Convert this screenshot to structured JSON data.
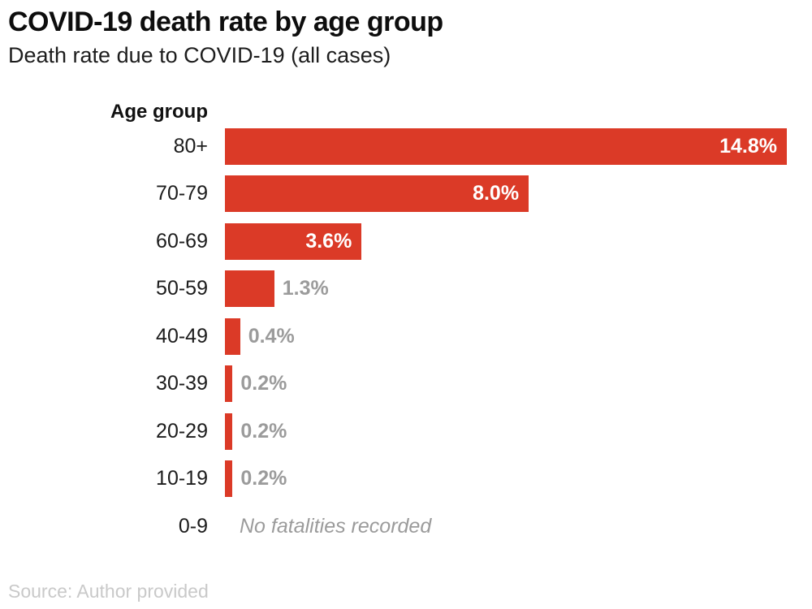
{
  "chart_data": {
    "type": "bar",
    "orientation": "horizontal",
    "title": "COVID-19 death rate by age group",
    "subtitle": "Death rate due to COVID-19 (all cases)",
    "axis_label": "Age group",
    "categories": [
      "80+",
      "70-79",
      "60-69",
      "50-59",
      "40-49",
      "30-39",
      "20-29",
      "10-19",
      "0-9"
    ],
    "values": [
      14.8,
      8.0,
      3.6,
      1.3,
      0.4,
      0.2,
      0.2,
      0.2,
      null
    ],
    "value_labels": [
      "14.8%",
      "8.0%",
      "3.6%",
      "1.3%",
      "0.4%",
      "0.2%",
      "0.2%",
      "0.2%",
      "No fatalities recorded"
    ],
    "label_placement": [
      "inside",
      "inside",
      "inside",
      "outside",
      "outside",
      "outside",
      "outside",
      "outside",
      "note"
    ],
    "xlim": [
      0,
      14.8
    ],
    "grid": false,
    "legend": false,
    "bar_color": "#DB3A27",
    "inside_label_color": "#FFFFFF",
    "outside_label_color": "#9B9B9B",
    "source": "Source: Author provided"
  }
}
